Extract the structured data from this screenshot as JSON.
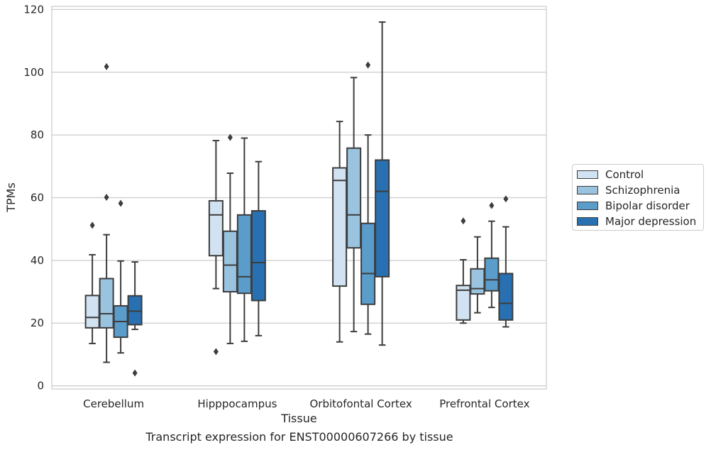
{
  "caption": "Transcript expression for ENST00000607266 by tissue",
  "chart_data": {
    "type": "box",
    "xlabel": "Tissue",
    "ylabel": "TPMs",
    "ylim": [
      -1,
      121
    ],
    "yticks": [
      0,
      20,
      40,
      60,
      80,
      100,
      120
    ],
    "grid": "horizontal",
    "legend_position": "right",
    "categories": [
      "Cerebellum",
      "Hipppocampus",
      "Orbitofontal Cortex",
      "Prefrontal Cortex"
    ],
    "series": [
      {
        "name": "Control",
        "color": "#d1e2f2",
        "boxes": [
          {
            "whislo": 13.5,
            "q1": 18.5,
            "med": 21.8,
            "q3": 28.8,
            "whishi": 41.8,
            "fliers": [
              51.2
            ]
          },
          {
            "whislo": 31.0,
            "q1": 41.5,
            "med": 54.5,
            "q3": 59.0,
            "whishi": 78.2,
            "fliers": [
              10.9
            ]
          },
          {
            "whislo": 14.0,
            "q1": 31.8,
            "med": 65.5,
            "q3": 69.5,
            "whishi": 84.3,
            "fliers": []
          },
          {
            "whislo": 20.0,
            "q1": 21.0,
            "med": 30.5,
            "q3": 32.0,
            "whishi": 40.2,
            "fliers": [
              52.6
            ]
          }
        ]
      },
      {
        "name": "Schizophrenia",
        "color": "#9ac3df",
        "boxes": [
          {
            "whislo": 7.5,
            "q1": 18.5,
            "med": 23.0,
            "q3": 34.2,
            "whishi": 48.2,
            "fliers": [
              60.1,
              101.8
            ]
          },
          {
            "whislo": 13.5,
            "q1": 30.0,
            "med": 38.5,
            "q3": 49.3,
            "whishi": 67.8,
            "fliers": [
              79.2
            ]
          },
          {
            "whislo": 17.3,
            "q1": 44.0,
            "med": 54.5,
            "q3": 75.8,
            "whishi": 98.3,
            "fliers": []
          },
          {
            "whislo": 23.3,
            "q1": 29.3,
            "med": 31.0,
            "q3": 37.3,
            "whishi": 47.5,
            "fliers": []
          }
        ]
      },
      {
        "name": "Bipolar disorder",
        "color": "#5a9dcb",
        "boxes": [
          {
            "whislo": 10.5,
            "q1": 15.5,
            "med": 20.5,
            "q3": 25.5,
            "whishi": 39.8,
            "fliers": [
              58.2
            ]
          },
          {
            "whislo": 14.2,
            "q1": 29.5,
            "med": 34.8,
            "q3": 54.5,
            "whishi": 79.0,
            "fliers": []
          },
          {
            "whislo": 16.5,
            "q1": 26.0,
            "med": 35.8,
            "q3": 51.8,
            "whishi": 80.0,
            "fliers": [
              102.3
            ]
          },
          {
            "whislo": 25.0,
            "q1": 30.3,
            "med": 33.8,
            "q3": 40.7,
            "whishi": 52.5,
            "fliers": [
              57.5
            ]
          }
        ]
      },
      {
        "name": "Major depression",
        "color": "#2870b1",
        "boxes": [
          {
            "whislo": 18.0,
            "q1": 19.5,
            "med": 23.8,
            "q3": 28.7,
            "whishi": 39.5,
            "fliers": [
              4.1
            ]
          },
          {
            "whislo": 16.0,
            "q1": 27.2,
            "med": 39.3,
            "q3": 55.8,
            "whishi": 71.5,
            "fliers": []
          },
          {
            "whislo": 13.0,
            "q1": 34.8,
            "med": 62.0,
            "q3": 72.0,
            "whishi": 116.0,
            "fliers": []
          },
          {
            "whislo": 18.8,
            "q1": 21.0,
            "med": 26.3,
            "q3": 35.8,
            "whishi": 50.7,
            "fliers": [
              59.6
            ]
          }
        ]
      }
    ]
  }
}
